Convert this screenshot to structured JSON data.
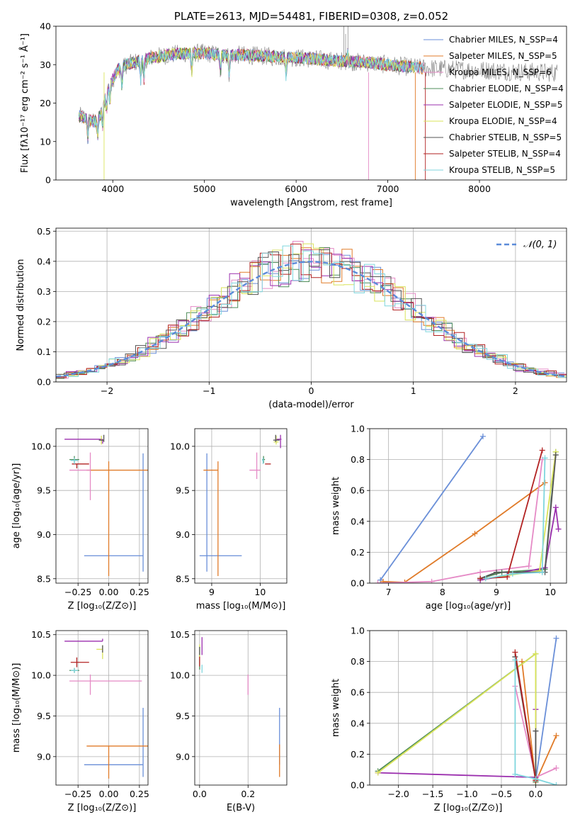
{
  "figure": {
    "colors": [
      "#6a8fd8",
      "#e07b29",
      "#e58ac6",
      "#4f8d5a",
      "#9b2fae",
      "#d9e35a",
      "#555555",
      "#b22222",
      "#7fd6de"
    ],
    "extra_colors": [
      "#a8d36b",
      "#c8c2e6"
    ]
  },
  "chart_data": [
    {
      "id": "spectrum",
      "type": "line",
      "title": "PLATE=2613, MJD=54481, FIBERID=0308, z=0.052",
      "xlabel": "wavelength [Angstrom, rest frame]",
      "ylabel": "Flux [fλ10⁻¹⁷ erg cm⁻² s⁻¹ Å⁻¹]",
      "xlim": [
        3380,
        8950
      ],
      "ylim": [
        0,
        40
      ],
      "xticks": [
        4000,
        5000,
        6000,
        7000,
        8000
      ],
      "yticks": [
        0,
        10,
        20,
        30,
        40
      ],
      "grid": false,
      "legend_position": "top-right",
      "legend": [
        "Chabrier MILES, N_SSP=4",
        "Salpeter MILES, N_SSP=5",
        "Kroupa MILES, N_SSP=6",
        "Chabrier ELODIE, N_SSP=4",
        "Salpeter ELODIE, N_SSP=5",
        "Kroupa ELODIE, N_SSP=4",
        "Chabrier STELIB, N_SSP=5",
        "Salpeter STELIB, N_SSP=4",
        "Kroupa STELIB, N_SSP=5"
      ],
      "continuum": {
        "x": [
          3600,
          3700,
          3800,
          3870,
          3950,
          4050,
          4150,
          4300,
          4450,
          4600,
          4800,
          5000,
          5200,
          5400,
          5600,
          5800,
          6000,
          6200,
          6400,
          6600,
          6800,
          7000,
          7200,
          7350,
          7500,
          7800,
          8100,
          8400,
          8700,
          8850
        ],
        "y": [
          17,
          16,
          15,
          17,
          24,
          28.5,
          30,
          31,
          32,
          32.5,
          33,
          33,
          32.5,
          32.5,
          32.3,
          32,
          31.8,
          31.5,
          31,
          30.8,
          30.5,
          30,
          29.5,
          29.2,
          29,
          28.7,
          28.5,
          28.2,
          28,
          27.9
        ]
      },
      "model_ranges": [
        [
          3630,
          7400
        ],
        [
          3630,
          7400
        ],
        [
          3630,
          7400
        ],
        [
          3630,
          7300
        ],
        [
          3630,
          7300
        ],
        [
          3630,
          7300
        ],
        [
          3630,
          7400
        ],
        [
          3630,
          7400
        ],
        [
          3630,
          7400
        ]
      ],
      "data_range": [
        3630,
        8850
      ]
    },
    {
      "id": "residuals",
      "type": "histogram",
      "xlabel": "(data-model)/error",
      "ylabel": "Normed distribution",
      "xlim": [
        -2.5,
        2.5
      ],
      "ylim": [
        0,
        0.51
      ],
      "xticks": [
        -2,
        -1,
        0,
        1,
        2
      ],
      "yticks": [
        0,
        0.1,
        0.2,
        0.3,
        0.4,
        0.5
      ],
      "grid": true,
      "bin_width": 0.1,
      "reference_curve": "N(0,1)",
      "legend": [
        "𝒩(0, 1)"
      ],
      "legend_position": "top-right"
    },
    {
      "id": "age-vs-Z",
      "type": "errorbar",
      "xlabel": "Z [log₁₀(Z/Z⊙)]",
      "ylabel": "age  [log₁₀(age/yr)]",
      "xlim": [
        -0.43,
        0.32
      ],
      "ylim": [
        8.45,
        10.2
      ],
      "xticks": [
        -0.25,
        0.0,
        0.25
      ],
      "yticks": [
        8.5,
        9.0,
        9.5,
        10.0
      ],
      "grid": true,
      "points": [
        {
          "x": 0.28,
          "y": 8.76,
          "xerr": [
            0.48,
            0.0
          ],
          "yerr": [
            0.18,
            1.16
          ],
          "color": 0
        },
        {
          "x": 0.0,
          "y": 9.73,
          "xerr": [
            0.18,
            0.42
          ],
          "yerr": [
            1.2,
            0.1
          ],
          "color": 1
        },
        {
          "x": -0.15,
          "y": 9.73,
          "xerr": [
            0.17,
            0.0
          ],
          "yerr": [
            0.34,
            0.2
          ],
          "color": 2
        },
        {
          "x": -0.28,
          "y": 9.85,
          "xerr": [
            0.04,
            0.04
          ],
          "yerr": [
            0.04,
            0.04
          ],
          "color": 3
        },
        {
          "x": -0.05,
          "y": 10.08,
          "xerr": [
            0.31,
            0.0
          ],
          "yerr": [
            0.05,
            0.0
          ],
          "color": 4
        },
        {
          "x": -0.06,
          "y": 10.05,
          "xerr": [
            0.0,
            0.0
          ],
          "yerr": [
            0.03,
            0.07
          ],
          "color": 5
        },
        {
          "x": -0.04,
          "y": 10.07,
          "xerr": [
            0.04,
            0.0
          ],
          "yerr": [
            0.02,
            0.06
          ],
          "color": 6
        },
        {
          "x": -0.26,
          "y": 9.8,
          "xerr": [
            0.04,
            0.1
          ],
          "yerr": [
            0.05,
            0.0
          ],
          "color": 7
        },
        {
          "x": -0.28,
          "y": 9.84,
          "xerr": [
            0.03,
            0.03
          ],
          "yerr": [
            0.04,
            0.03
          ],
          "color": 8
        }
      ]
    },
    {
      "id": "age-vs-mass",
      "type": "errorbar",
      "xlabel": "mass [log₁₀(M/M⊙)]",
      "ylabel": "",
      "xlim": [
        8.65,
        10.55
      ],
      "ylim": [
        8.45,
        10.2
      ],
      "xticks": [
        9,
        10
      ],
      "yticks": [
        8.5,
        9.0,
        9.5,
        10.0
      ],
      "grid": true,
      "points": [
        {
          "x": 8.9,
          "y": 8.76,
          "xerr": [
            0.15,
            0.72
          ],
          "yerr": [
            0.18,
            1.16
          ],
          "color": 0
        },
        {
          "x": 9.13,
          "y": 9.73,
          "xerr": [
            0.3,
            0.0
          ],
          "yerr": [
            1.2,
            0.1
          ],
          "color": 1
        },
        {
          "x": 9.93,
          "y": 9.73,
          "xerr": [
            0.15,
            0.08
          ],
          "yerr": [
            0.1,
            0.2
          ],
          "color": 2
        },
        {
          "x": 10.07,
          "y": 9.85,
          "xerr": [
            0.03,
            0.03
          ],
          "yerr": [
            0.04,
            0.04
          ],
          "color": 3
        },
        {
          "x": 10.42,
          "y": 10.08,
          "xerr": [
            0.1,
            0.02
          ],
          "yerr": [
            0.1,
            0.05
          ],
          "color": 4
        },
        {
          "x": 10.33,
          "y": 10.05,
          "xerr": [
            0.05,
            0.05
          ],
          "yerr": [
            0.03,
            0.07
          ],
          "color": 5
        },
        {
          "x": 10.32,
          "y": 10.07,
          "xerr": [
            0.05,
            0.08
          ],
          "yerr": [
            0.02,
            0.06
          ],
          "color": 6
        },
        {
          "x": 10.16,
          "y": 9.8,
          "xerr": [
            0.06,
            0.06
          ],
          "yerr": [
            0.0,
            0.0
          ],
          "color": 7
        },
        {
          "x": 10.06,
          "y": 9.84,
          "xerr": [
            0.02,
            0.02
          ],
          "yerr": [
            0.04,
            0.03
          ],
          "color": 8
        }
      ]
    },
    {
      "id": "weight-vs-age",
      "type": "line",
      "xlabel": "age  [log₁₀(age/yr)]",
      "ylabel": "mass weight",
      "xlim": [
        6.65,
        10.3
      ],
      "ylim": [
        0,
        1.0
      ],
      "xticks": [
        7,
        8,
        9,
        10
      ],
      "yticks": [
        0.0,
        0.2,
        0.4,
        0.6,
        0.8,
        1.0
      ],
      "grid": true,
      "series": [
        {
          "color": 0,
          "x": [
            6.85,
            8.75
          ],
          "y": [
            0.02,
            0.95
          ]
        },
        {
          "color": 1,
          "x": [
            6.9,
            7.3,
            8.6,
            9.9
          ],
          "y": [
            0.01,
            0.005,
            0.32,
            0.65
          ]
        },
        {
          "color": 2,
          "x": [
            6.8,
            7.8,
            8.7,
            9.6,
            9.85
          ],
          "y": [
            0.0,
            0.01,
            0.07,
            0.11,
            0.8
          ]
        },
        {
          "color": 3,
          "x": [
            8.7,
            9.1,
            9.9,
            10.1
          ],
          "y": [
            0.03,
            0.07,
            0.09,
            0.85
          ]
        },
        {
          "color": 4,
          "x": [
            8.7,
            9.2,
            9.9,
            10.1,
            10.15
          ],
          "y": [
            0.02,
            0.05,
            0.1,
            0.49,
            0.35
          ]
        },
        {
          "color": 5,
          "x": [
            8.8,
            9.8,
            10.1
          ],
          "y": [
            0.03,
            0.08,
            0.85
          ]
        },
        {
          "color": 6,
          "x": [
            8.7,
            9.0,
            9.9,
            10.1
          ],
          "y": [
            0.03,
            0.07,
            0.07,
            0.83
          ]
        },
        {
          "color": 7,
          "x": [
            8.7,
            9.2,
            9.85
          ],
          "y": [
            0.03,
            0.04,
            0.86
          ]
        },
        {
          "color": 8,
          "x": [
            8.8,
            9.3,
            9.85,
            9.9
          ],
          "y": [
            0.03,
            0.06,
            0.07,
            0.81
          ]
        }
      ]
    },
    {
      "id": "mass-vs-Z",
      "type": "errorbar",
      "xlabel": "Z [log₁₀(Z/Z⊙)]",
      "ylabel": "mass [log₁₀(M/M⊙)]",
      "xlim": [
        -0.43,
        0.32
      ],
      "ylim": [
        8.65,
        10.55
      ],
      "xticks": [
        -0.25,
        0.0,
        0.25
      ],
      "yticks": [
        9.0,
        9.5,
        10.0,
        10.5
      ],
      "grid": true,
      "points": [
        {
          "x": 0.28,
          "y": 8.9,
          "xerr": [
            0.48,
            0.0
          ],
          "yerr": [
            0.15,
            0.7
          ],
          "color": 0
        },
        {
          "x": 0.0,
          "y": 9.13,
          "xerr": [
            0.18,
            0.42
          ],
          "yerr": [
            0.4,
            0.0
          ],
          "color": 1
        },
        {
          "x": -0.15,
          "y": 9.93,
          "xerr": [
            0.17,
            0.42
          ],
          "yerr": [
            0.17,
            0.08
          ],
          "color": 2
        },
        {
          "x": -0.28,
          "y": 10.06,
          "xerr": [
            0.04,
            0.04
          ],
          "yerr": [
            0.03,
            0.03
          ],
          "color": 3
        },
        {
          "x": -0.05,
          "y": 10.42,
          "xerr": [
            0.31,
            0.0
          ],
          "yerr": [
            0.0,
            0.03
          ],
          "color": 4
        },
        {
          "x": -0.05,
          "y": 10.32,
          "xerr": [
            0.05,
            0.0
          ],
          "yerr": [
            0.12,
            0.05
          ],
          "color": 5
        },
        {
          "x": -0.05,
          "y": 10.33,
          "xerr": [
            0.0,
            0.0
          ],
          "yerr": [
            0.05,
            0.04
          ],
          "color": 6
        },
        {
          "x": -0.26,
          "y": 10.16,
          "xerr": [
            0.05,
            0.1
          ],
          "yerr": [
            0.06,
            0.06
          ],
          "color": 7
        },
        {
          "x": -0.28,
          "y": 10.06,
          "xerr": [
            0.03,
            0.03
          ],
          "yerr": [
            0.03,
            0.03
          ],
          "color": 8
        }
      ]
    },
    {
      "id": "mass-vs-EBV",
      "type": "errorbar",
      "xlabel": "E(B-V)",
      "ylabel": "",
      "xlim": [
        -0.02,
        0.36
      ],
      "ylim": [
        8.65,
        10.55
      ],
      "xticks": [
        0.0,
        0.2
      ],
      "yticks": [
        9.0,
        9.5,
        10.0,
        10.5
      ],
      "grid": true,
      "points": [
        {
          "x": 0.33,
          "y": 8.9,
          "xerr": [
            0.0,
            0.0
          ],
          "yerr": [
            0.0,
            0.7
          ],
          "color": 0
        },
        {
          "x": 0.33,
          "y": 8.9,
          "xerr": [
            0.0,
            0.0
          ],
          "yerr": [
            0.15,
            0.25
          ],
          "color": 1
        },
        {
          "x": 0.2,
          "y": 9.93,
          "xerr": [
            0.0,
            0.0
          ],
          "yerr": [
            0.17,
            0.08
          ],
          "color": 2
        },
        {
          "x": 0.0,
          "y": 10.17,
          "xerr": [
            0.0,
            0.0
          ],
          "yerr": [
            0.1,
            0.1
          ],
          "color": 3
        },
        {
          "x": 0.01,
          "y": 10.37,
          "xerr": [
            0.0,
            0.0
          ],
          "yerr": [
            0.12,
            0.1
          ],
          "color": 4
        },
        {
          "x": 0.0,
          "y": 10.32,
          "xerr": [
            0.0,
            0.0
          ],
          "yerr": [
            0.12,
            0.06
          ],
          "color": 5
        },
        {
          "x": 0.0,
          "y": 10.3,
          "xerr": [
            0.0,
            0.0
          ],
          "yerr": [
            0.05,
            0.05
          ],
          "color": 6
        },
        {
          "x": 0.0,
          "y": 10.17,
          "xerr": [
            0.0,
            0.0
          ],
          "yerr": [
            0.06,
            0.06
          ],
          "color": 7
        },
        {
          "x": 0.01,
          "y": 10.08,
          "xerr": [
            0.0,
            0.0
          ],
          "yerr": [
            0.05,
            0.05
          ],
          "color": 8
        }
      ]
    },
    {
      "id": "weight-vs-Z",
      "type": "line",
      "xlabel": "Z [log₁₀(Z/Z⊙)]",
      "ylabel": "mass weight",
      "xlim": [
        -2.42,
        0.45
      ],
      "ylim": [
        0,
        1.0
      ],
      "xticks": [
        -2.0,
        -1.5,
        -1.0,
        -0.5,
        0.0
      ],
      "yticks": [
        0.0,
        0.2,
        0.4,
        0.6,
        0.8,
        1.0
      ],
      "grid": true,
      "series": [
        {
          "color": 0,
          "x": [
            0.0,
            0.3
          ],
          "y": [
            0.03,
            0.95
          ]
        },
        {
          "color": 1,
          "x": [
            -0.2,
            0.0,
            0.3
          ],
          "y": [
            0.8,
            0.02,
            0.32
          ]
        },
        {
          "color": 2,
          "x": [
            -0.3,
            0.0,
            0.3
          ],
          "y": [
            0.64,
            0.05,
            0.11
          ]
        },
        {
          "color": 3,
          "x": [
            -2.3,
            0.0,
            0.0
          ],
          "y": [
            0.09,
            0.85,
            0.02
          ]
        },
        {
          "color": 4,
          "x": [
            -2.3,
            0.0,
            0.0
          ],
          "y": [
            0.08,
            0.05,
            0.49
          ]
        },
        {
          "color": 5,
          "x": [
            -2.3,
            0.0,
            0.0
          ],
          "y": [
            0.08,
            0.85,
            0.03
          ]
        },
        {
          "color": 6,
          "x": [
            -0.3,
            0.0,
            0.0
          ],
          "y": [
            0.83,
            0.03,
            0.35
          ]
        },
        {
          "color": 7,
          "x": [
            -0.3,
            0.0
          ],
          "y": [
            0.86,
            0.03
          ]
        },
        {
          "color": 8,
          "x": [
            -0.3,
            -0.3,
            0.0,
            0.3
          ],
          "y": [
            0.81,
            0.07,
            0.04,
            0.0
          ]
        }
      ]
    }
  ]
}
